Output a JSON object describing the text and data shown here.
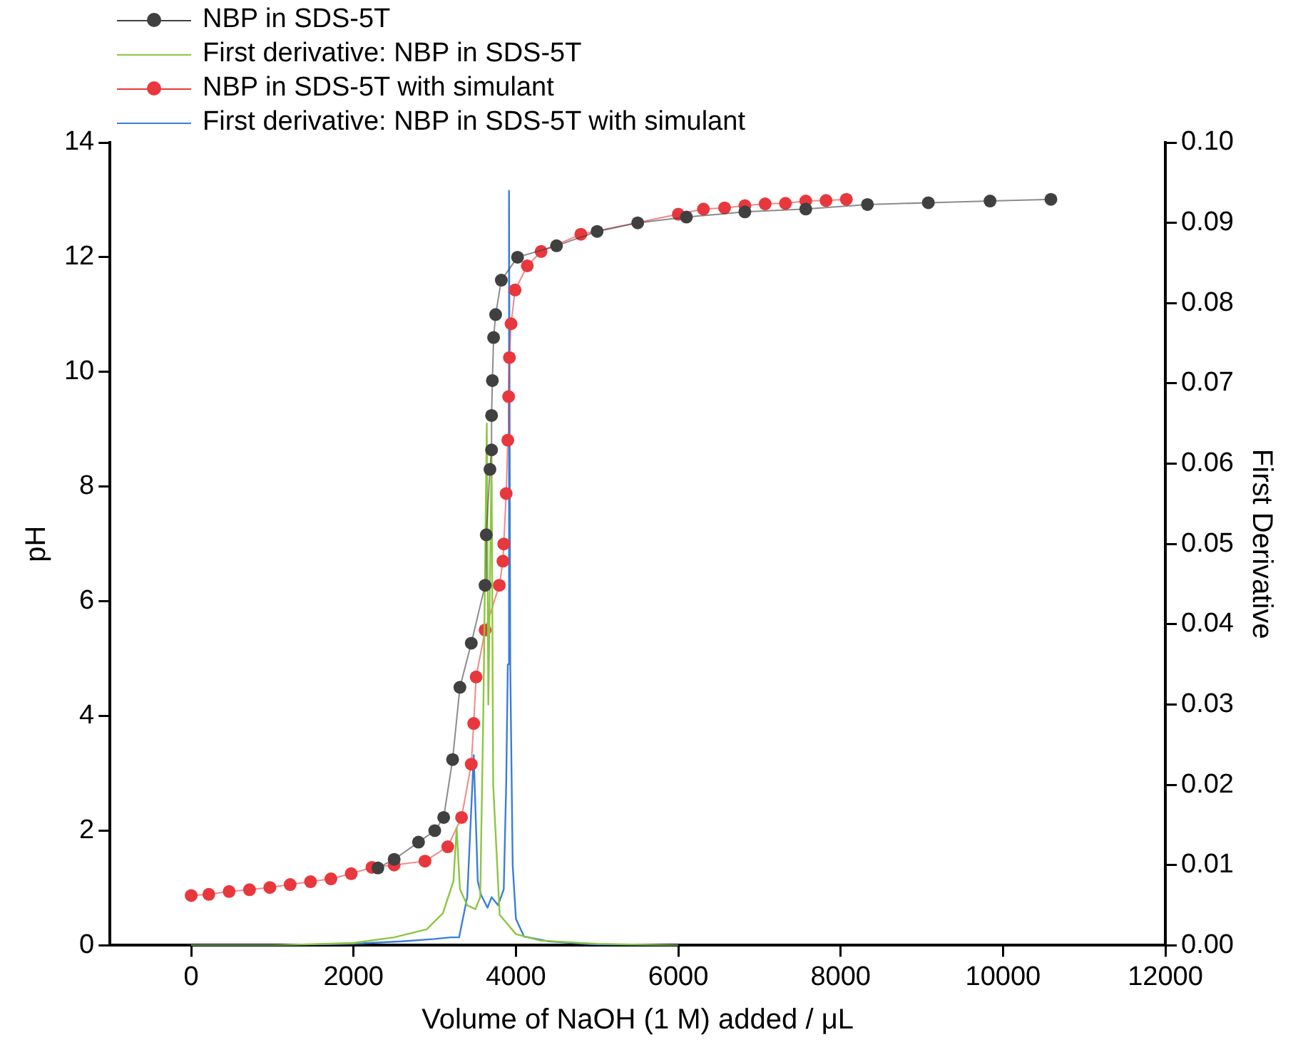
{
  "chart_data": {
    "type": "line",
    "xlabel": "Volume of NaOH (1 M) added / μL",
    "ylabel": "pH",
    "y2label": "First Derivative",
    "xlim": [
      -1000,
      12000
    ],
    "xticks": [
      0,
      2000,
      4000,
      6000,
      8000,
      10000,
      12000
    ],
    "ylim": [
      0,
      14
    ],
    "yticks": [
      0,
      2,
      4,
      6,
      8,
      10,
      12,
      14
    ],
    "y2lim": [
      0,
      0.1
    ],
    "y2ticks": [
      {
        "value": 0,
        "label": "0.00"
      },
      {
        "value": 0.01,
        "label": "0.01"
      },
      {
        "value": 0.02,
        "label": "0.02"
      },
      {
        "value": 0.03,
        "label": "0.03"
      },
      {
        "value": 0.04,
        "label": "0.04"
      },
      {
        "value": 0.05,
        "label": "0.05"
      },
      {
        "value": 0.06,
        "label": "0.06"
      },
      {
        "value": 0.07,
        "label": "0.07"
      },
      {
        "value": 0.08,
        "label": "0.08"
      },
      {
        "value": 0.09,
        "label": "0.09"
      },
      {
        "value": 0.1,
        "label": "0.10"
      }
    ],
    "grid": false,
    "legend": "top left",
    "series": [
      {
        "name": "NBP in SDS-5T",
        "color": "#404040",
        "marker": "circle",
        "x": [
          2300,
          2500,
          2800,
          3000,
          3110,
          3220,
          3310,
          3450,
          3620,
          3635,
          3680,
          3700,
          3700,
          3710,
          3725,
          3750,
          3820,
          4020,
          4500,
          5000,
          5500,
          6100,
          6820,
          7570,
          8330,
          9080,
          9840,
          10590
        ],
        "values": [
          1.35,
          1.5,
          1.8,
          2.0,
          2.23,
          3.24,
          4.5,
          5.27,
          6.28,
          7.16,
          8.3,
          8.64,
          9.24,
          9.85,
          10.6,
          11.0,
          11.6,
          12.0,
          12.2,
          12.45,
          12.6,
          12.7,
          12.79,
          12.84,
          12.92,
          12.95,
          12.98,
          13.01
        ]
      },
      {
        "name": "First derivative: NBP in SDS-5T",
        "color": "#8cc63f",
        "marker": "none",
        "axis": "y2",
        "x": [
          0,
          1000,
          2000,
          2500,
          2900,
          3100,
          3230,
          3270,
          3310,
          3400,
          3500,
          3560,
          3600,
          3641,
          3660,
          3700,
          3720,
          3800,
          4000,
          4300,
          5000,
          6000
        ],
        "values": [
          0,
          0,
          0.0003,
          0.001,
          0.002,
          0.004,
          0.008,
          0.0146,
          0.007,
          0.005,
          0.0045,
          0.006,
          0.03,
          0.065,
          0.03,
          0.061,
          0.02,
          0.0038,
          0.0014,
          0.0006,
          0.0002,
          0
        ]
      },
      {
        "name": "NBP in SDS-5T with simulant",
        "color": "#e8383d",
        "marker": "circle",
        "x": [
          0,
          217,
          467,
          718,
          969,
          1219,
          1470,
          1721,
          1971,
          2226,
          2500,
          2880,
          3160,
          3330,
          3450,
          3480,
          3510,
          3620,
          3795,
          3840,
          3850,
          3880,
          3900,
          3910,
          3920,
          3940,
          3990,
          4140,
          4310,
          4800,
          6000,
          6310,
          6570,
          6820,
          7070,
          7320,
          7570,
          7820,
          8070
        ],
        "values": [
          0.87,
          0.89,
          0.94,
          0.97,
          1.01,
          1.06,
          1.11,
          1.16,
          1.25,
          1.36,
          1.4,
          1.47,
          1.72,
          2.23,
          3.16,
          3.87,
          4.68,
          5.5,
          6.28,
          6.7,
          7.0,
          7.88,
          8.81,
          9.57,
          10.25,
          10.84,
          11.43,
          11.85,
          12.1,
          12.4,
          12.75,
          12.84,
          12.86,
          12.9,
          12.93,
          12.94,
          12.98,
          12.99,
          13.01
        ]
      },
      {
        "name": "First derivative: NBP in SDS-5T with simulant",
        "color": "#3b7dd8",
        "marker": "none",
        "axis": "y2",
        "x": [
          0,
          1000,
          2000,
          2600,
          3000,
          3200,
          3300,
          3400,
          3480,
          3530,
          3570,
          3650,
          3700,
          3780,
          3850,
          3880,
          3900,
          3915,
          3930,
          3960,
          4000,
          4100,
          4400,
          5000,
          6000
        ],
        "values": [
          0,
          0,
          0.0002,
          0.0005,
          0.0008,
          0.001,
          0.001,
          0.006,
          0.0237,
          0.008,
          0.0063,
          0.0047,
          0.006,
          0.005,
          0.007,
          0.02,
          0.035,
          0.094,
          0.035,
          0.01,
          0.0033,
          0.0011,
          0.0005,
          0.0001,
          0
        ]
      }
    ]
  }
}
